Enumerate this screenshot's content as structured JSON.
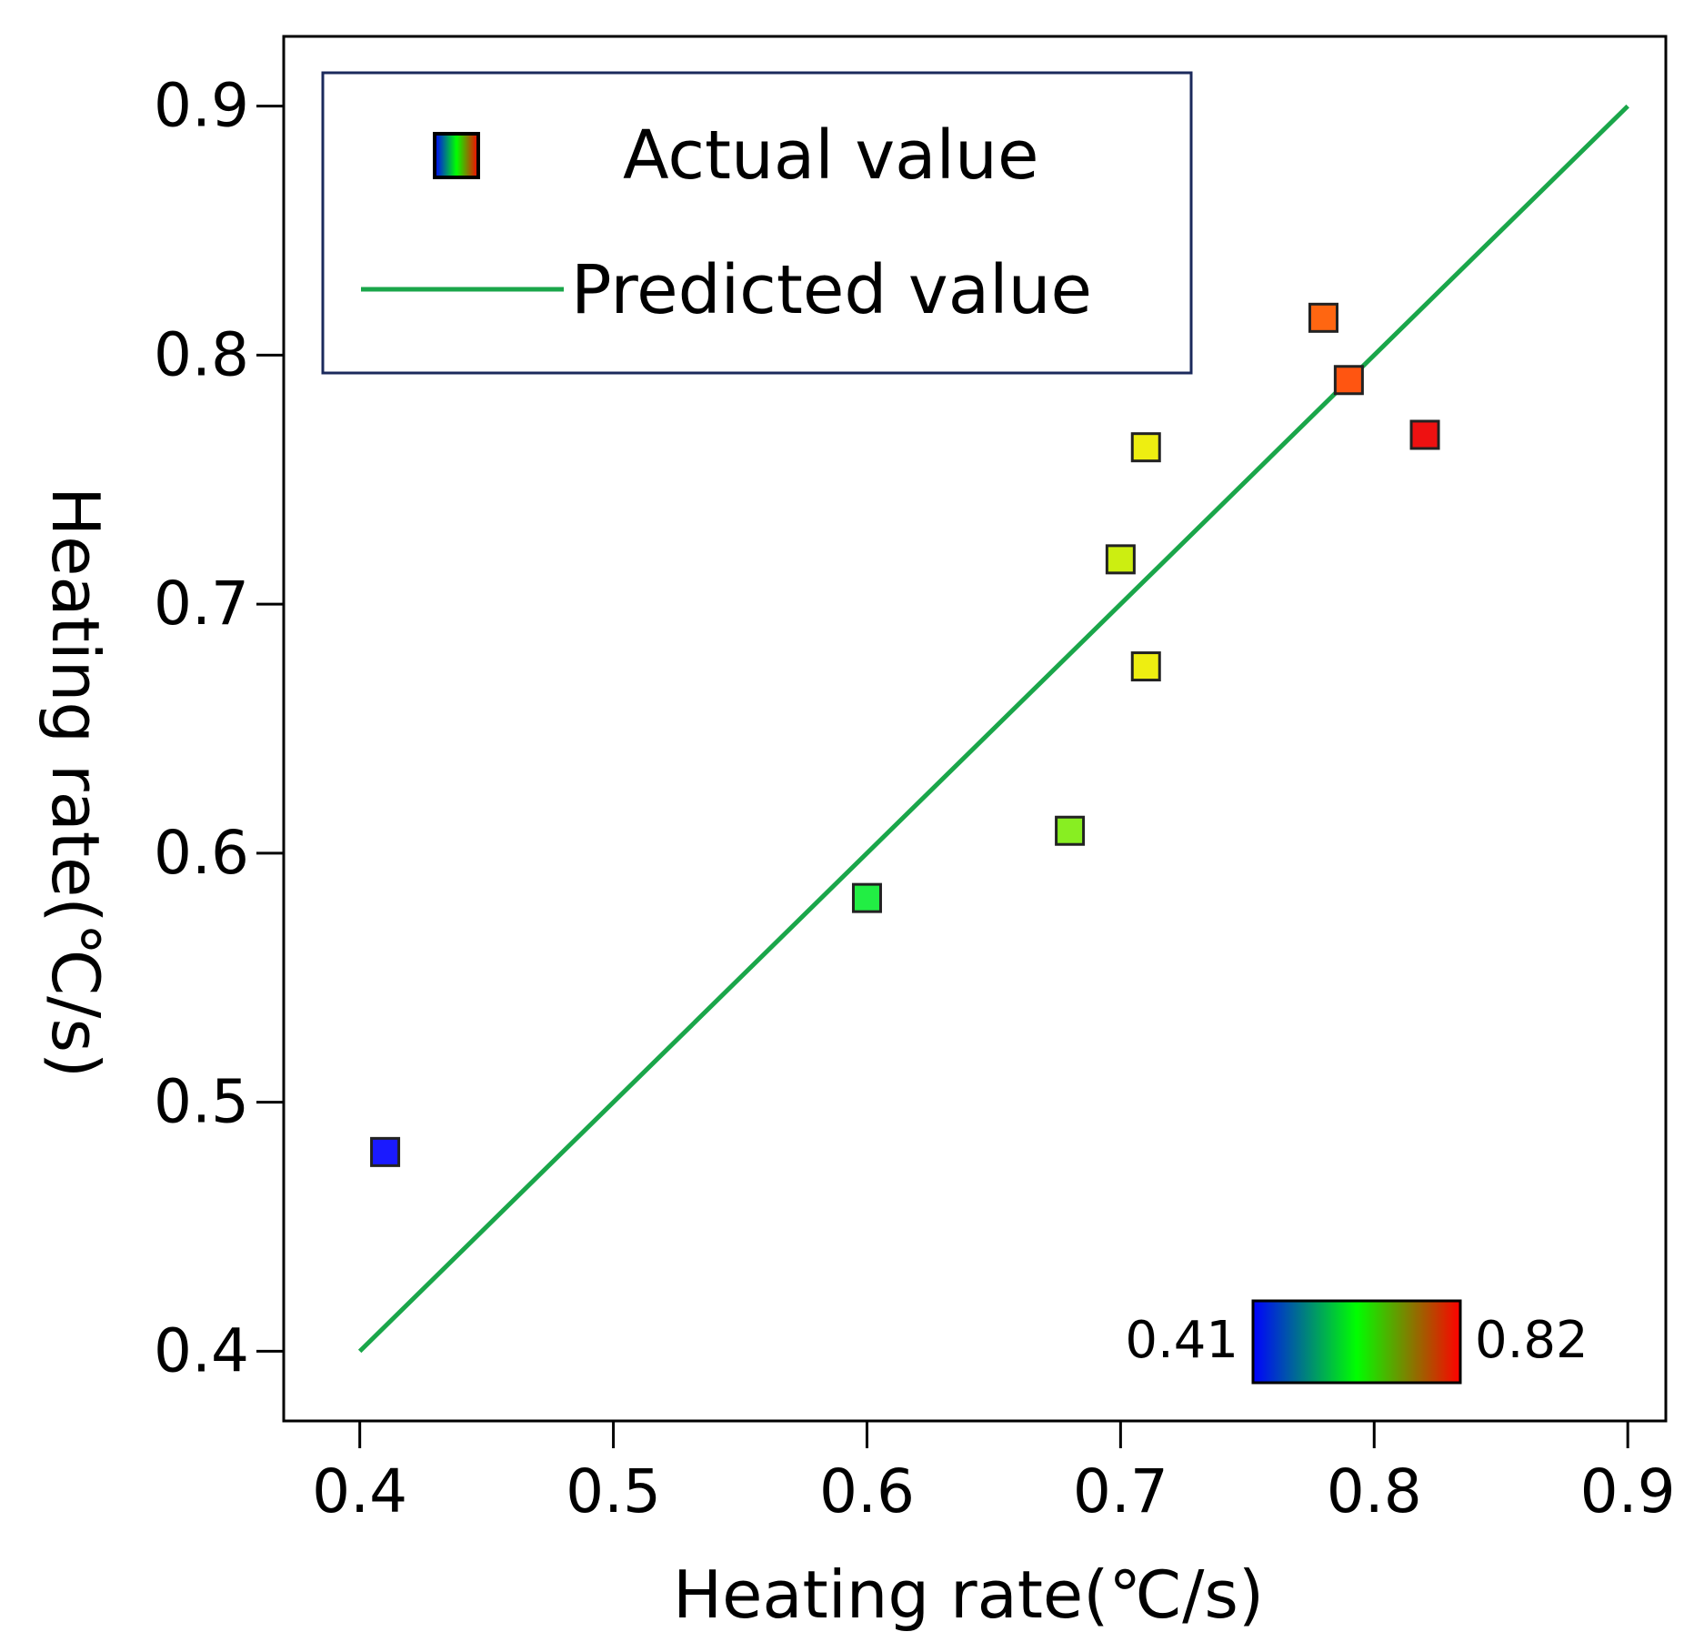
{
  "chart_data": {
    "type": "scatter",
    "title": "",
    "xlabel": "Heating rate(℃/s)",
    "ylabel": "Heating rate(℃/s)",
    "xlim": [
      0.37,
      0.915
    ],
    "ylim": [
      0.372,
      0.928
    ],
    "xticks": [
      "0.4",
      "0.5",
      "0.6",
      "0.7",
      "0.8",
      "0.9"
    ],
    "yticks": [
      "0.4",
      "0.5",
      "0.6",
      "0.7",
      "0.8",
      "0.9"
    ],
    "series": [
      {
        "name": "Actual value",
        "kind": "scatter",
        "points": [
          {
            "x": 0.41,
            "y": 0.48,
            "color": "#1a1aff"
          },
          {
            "x": 0.6,
            "y": 0.582,
            "color": "#22ee44"
          },
          {
            "x": 0.68,
            "y": 0.609,
            "color": "#88ee22"
          },
          {
            "x": 0.7,
            "y": 0.718,
            "color": "#ccee11"
          },
          {
            "x": 0.71,
            "y": 0.675,
            "color": "#eeee11"
          },
          {
            "x": 0.71,
            "y": 0.763,
            "color": "#eeee11"
          },
          {
            "x": 0.78,
            "y": 0.815,
            "color": "#ff6611"
          },
          {
            "x": 0.79,
            "y": 0.79,
            "color": "#ff5511"
          },
          {
            "x": 0.82,
            "y": 0.768,
            "color": "#ee1111"
          }
        ]
      },
      {
        "name": "Predicted value",
        "kind": "line",
        "x": [
          0.4,
          0.9
        ],
        "y": [
          0.4,
          0.9
        ],
        "color": "#1aa64a"
      }
    ],
    "legend": {
      "position": "top-left",
      "entries": [
        "Actual value",
        "Predicted value"
      ]
    },
    "colorbar": {
      "min_label": "0.41",
      "max_label": "0.82",
      "position": "bottom-right",
      "colors": [
        "#0000ff",
        "#00ff00",
        "#ff0000"
      ]
    }
  }
}
